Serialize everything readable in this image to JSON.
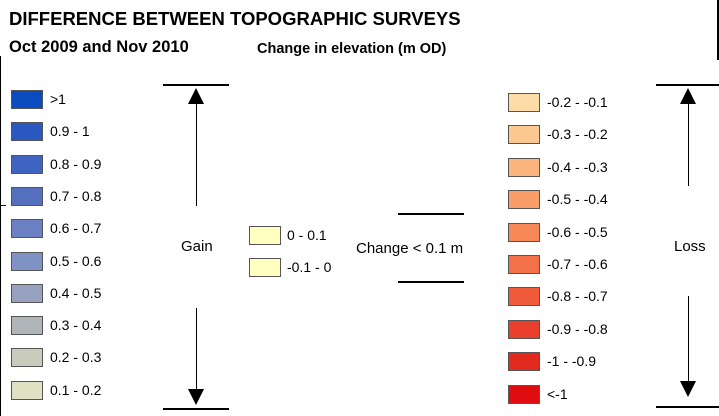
{
  "title_line1": "DIFFERENCE BETWEEN TOPOGRAPHIC SURVEYS",
  "title_line2": "Oct 2009 and Nov 2010",
  "subtitle": "Change in elevation (m OD)",
  "gain": {
    "label": "Gain",
    "items": [
      {
        "label": ">1",
        "color": "#0b4bc0"
      },
      {
        "label": "0.9 - 1",
        "color": "#2a58c0"
      },
      {
        "label": "0.8 - 0.9",
        "color": "#3f63c0"
      },
      {
        "label": "0.7 - 0.8",
        "color": "#5670c0"
      },
      {
        "label": "0.6 - 0.7",
        "color": "#6a80c2"
      },
      {
        "label": "0.5 - 0.6",
        "color": "#8091c4"
      },
      {
        "label": "0.4 - 0.5",
        "color": "#98a2c0"
      },
      {
        "label": "0.3 - 0.4",
        "color": "#b0b6b8"
      },
      {
        "label": "0.2 - 0.3",
        "color": "#c9cbbc"
      },
      {
        "label": "0.1 - 0.2",
        "color": "#e0e1c2"
      }
    ]
  },
  "neutral": {
    "label": "Change < 0.1 m",
    "items": [
      {
        "label": "0 - 0.1",
        "color": "#ffffc0"
      },
      {
        "label": "-0.1 - 0",
        "color": "#ffffc0"
      }
    ]
  },
  "loss": {
    "label": "Loss",
    "items": [
      {
        "label": "-0.2 - -0.1",
        "color": "#fddca8"
      },
      {
        "label": "-0.3 - -0.2",
        "color": "#fcc892"
      },
      {
        "label": "-0.4 - -0.3",
        "color": "#fbb47e"
      },
      {
        "label": "-0.5 - -0.4",
        "color": "#f99d6a"
      },
      {
        "label": "-0.6 - -0.5",
        "color": "#f78757"
      },
      {
        "label": "-0.7 - -0.6",
        "color": "#f37048"
      },
      {
        "label": "-0.8 - -0.7",
        "color": "#ee5a3a"
      },
      {
        "label": "-0.9 - -0.8",
        "color": "#e8402c"
      },
      {
        "label": "-1 - -0.9",
        "color": "#e22a1f"
      },
      {
        "label": "<-1",
        "color": "#e00d10"
      }
    ]
  }
}
